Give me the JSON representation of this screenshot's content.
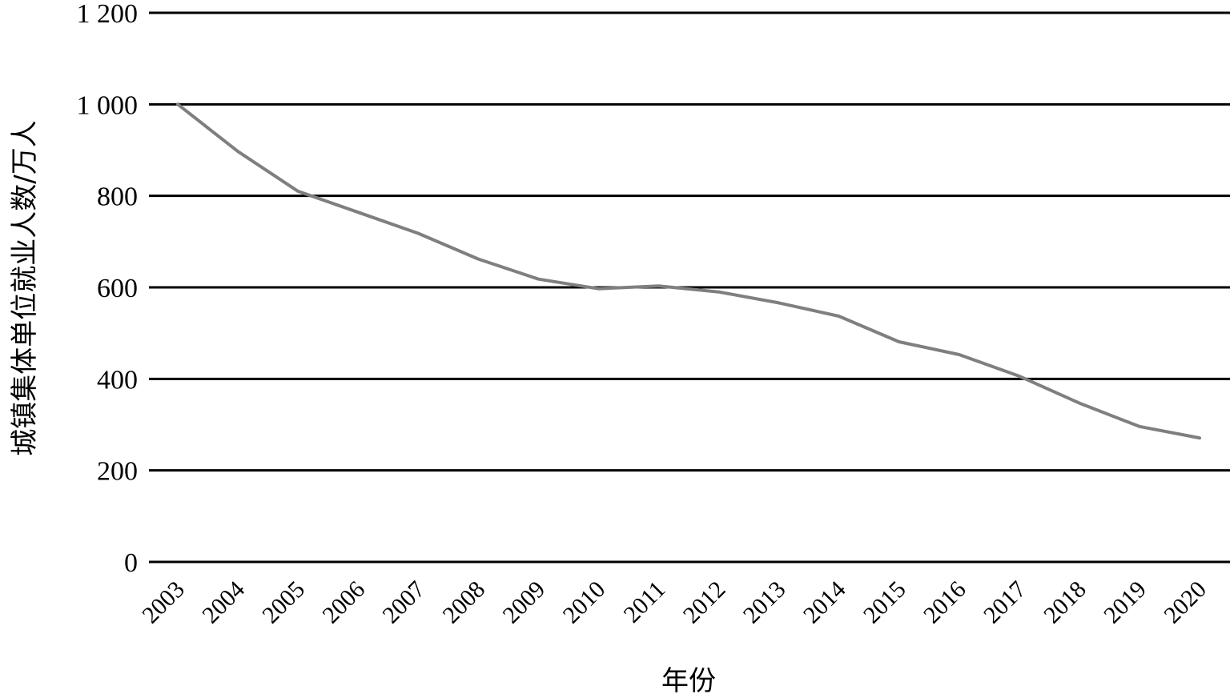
{
  "chart_data": {
    "type": "line",
    "xlabel": "年份",
    "ylabel": "城镇集体单位就业人数/万人",
    "ylim": [
      0,
      1200
    ],
    "yticks": [
      0,
      200,
      400,
      600,
      800,
      1000,
      1200
    ],
    "ytick_labels": [
      "0",
      "200",
      "400",
      "600",
      "800",
      "1 000",
      "1 200"
    ],
    "grid": true,
    "categories": [
      "2003",
      "2004",
      "2005",
      "2006",
      "2007",
      "2008",
      "2009",
      "2010",
      "2011",
      "2012",
      "2013",
      "2014",
      "2015",
      "2016",
      "2017",
      "2018",
      "2019",
      "2020"
    ],
    "series": [
      {
        "color": "#7f7f7f",
        "values": [
          1000,
          897,
          810,
          764,
          718,
          662,
          618,
          597,
          603,
          590,
          566,
          537,
          481,
          453,
          406,
          347,
          296,
          271
        ]
      }
    ]
  }
}
